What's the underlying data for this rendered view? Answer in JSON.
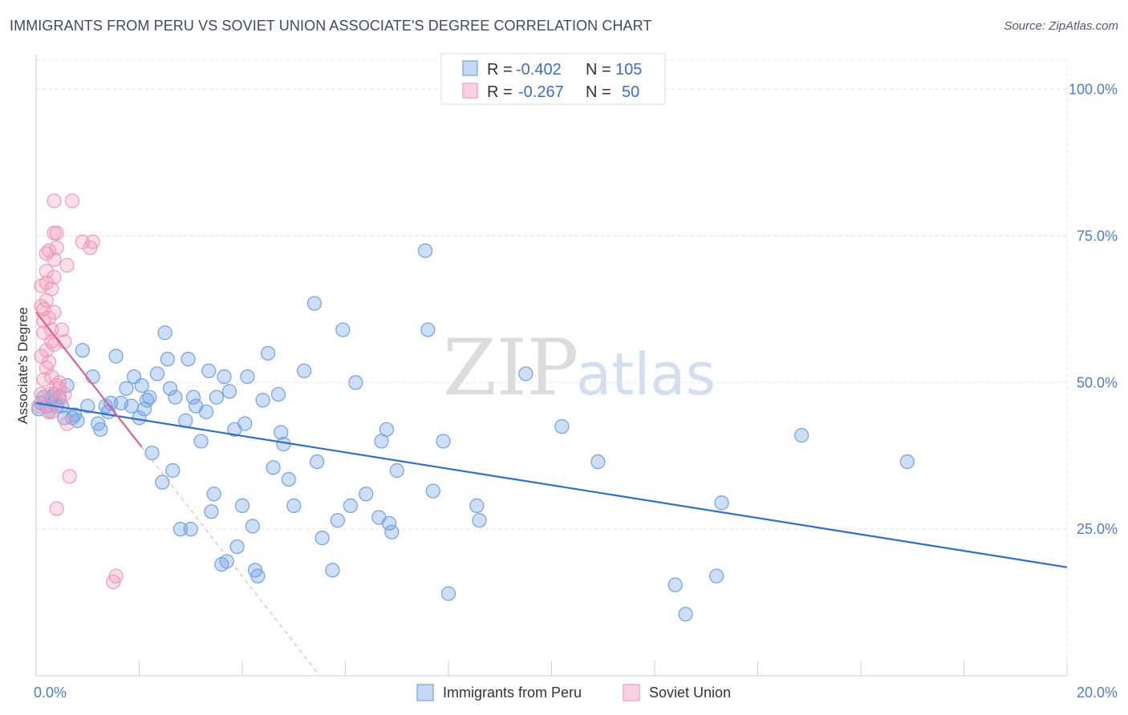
{
  "header": {
    "title": "IMMIGRANTS FROM PERU VS SOVIET UNION ASSOCIATE'S DEGREE CORRELATION CHART",
    "source": "Source: ZipAtlas.com"
  },
  "watermark": {
    "zip": "ZIP",
    "atlas": "atlas"
  },
  "legend": {
    "rows": [
      {
        "r_label": "R =",
        "r_value": "-0.402",
        "n_label": "N =",
        "n_value": "105",
        "color": "#6fa1e8"
      },
      {
        "r_label": "R =",
        "r_value": "-0.267",
        "n_label": "N =",
        "n_value": "50",
        "color": "#f19bb6"
      }
    ]
  },
  "chart_data": {
    "type": "scatter",
    "title": "IMMIGRANTS FROM PERU VS SOVIET UNION ASSOCIATE'S DEGREE CORRELATION CHART",
    "xlabel": "",
    "ylabel": "Associate's Degree",
    "xlim": [
      0,
      20
    ],
    "ylim": [
      0,
      105
    ],
    "x_tick_labels": [
      "0.0%",
      "20.0%"
    ],
    "y_ticks": [
      25,
      50,
      75,
      100
    ],
    "y_tick_labels": [
      "25.0%",
      "50.0%",
      "75.0%",
      "100.0%"
    ],
    "grid": true,
    "legend_position": "top-center",
    "series": [
      {
        "name": "Immigrants from Peru",
        "color": "#6fa1e8",
        "line_color": "#2d6fd0",
        "trend": {
          "x": [
            0.0,
            20.0
          ],
          "y": [
            46.5,
            18.5
          ]
        },
        "points": [
          [
            0.05,
            45.5
          ],
          [
            0.1,
            46.5
          ],
          [
            0.15,
            47.5
          ],
          [
            0.2,
            46
          ],
          [
            0.25,
            45
          ],
          [
            0.3,
            47.5
          ],
          [
            0.35,
            48
          ],
          [
            0.4,
            46
          ],
          [
            0.45,
            47.5
          ],
          [
            0.5,
            46
          ],
          [
            0.55,
            44
          ],
          [
            0.6,
            49.5
          ],
          [
            0.7,
            44
          ],
          [
            0.75,
            44.5
          ],
          [
            0.8,
            43.5
          ],
          [
            0.9,
            55.5
          ],
          [
            1.0,
            46
          ],
          [
            1.1,
            51
          ],
          [
            1.2,
            43
          ],
          [
            1.25,
            42
          ],
          [
            1.35,
            46
          ],
          [
            1.4,
            45
          ],
          [
            1.45,
            46.5
          ],
          [
            1.55,
            54.5
          ],
          [
            1.65,
            46.5
          ],
          [
            1.75,
            49
          ],
          [
            1.85,
            46
          ],
          [
            1.9,
            51
          ],
          [
            2.0,
            44
          ],
          [
            2.05,
            49.5
          ],
          [
            2.1,
            45.5
          ],
          [
            2.15,
            47
          ],
          [
            2.2,
            47.5
          ],
          [
            2.25,
            38
          ],
          [
            2.35,
            51.5
          ],
          [
            2.45,
            33
          ],
          [
            2.5,
            58.5
          ],
          [
            2.55,
            54
          ],
          [
            2.6,
            49
          ],
          [
            2.65,
            35
          ],
          [
            2.7,
            47.5
          ],
          [
            2.8,
            25
          ],
          [
            2.9,
            43.5
          ],
          [
            2.95,
            54
          ],
          [
            3.0,
            25
          ],
          [
            3.05,
            47.5
          ],
          [
            3.1,
            46
          ],
          [
            3.2,
            40
          ],
          [
            3.3,
            45
          ],
          [
            3.35,
            52
          ],
          [
            3.4,
            28
          ],
          [
            3.45,
            31
          ],
          [
            3.5,
            47.5
          ],
          [
            3.6,
            19
          ],
          [
            3.65,
            51
          ],
          [
            3.7,
            19.5
          ],
          [
            3.75,
            48.5
          ],
          [
            3.85,
            42
          ],
          [
            3.9,
            22
          ],
          [
            4.0,
            29
          ],
          [
            4.05,
            43
          ],
          [
            4.1,
            51
          ],
          [
            4.2,
            25.5
          ],
          [
            4.25,
            18
          ],
          [
            4.3,
            17
          ],
          [
            4.4,
            47
          ],
          [
            4.5,
            55
          ],
          [
            4.6,
            35.5
          ],
          [
            4.7,
            48
          ],
          [
            4.75,
            41.5
          ],
          [
            4.8,
            39.5
          ],
          [
            4.9,
            33.5
          ],
          [
            5.0,
            29
          ],
          [
            5.2,
            52
          ],
          [
            5.4,
            63.5
          ],
          [
            5.45,
            36.5
          ],
          [
            5.55,
            23.5
          ],
          [
            5.75,
            18
          ],
          [
            5.85,
            26.5
          ],
          [
            5.95,
            59
          ],
          [
            6.1,
            29
          ],
          [
            6.2,
            50
          ],
          [
            6.4,
            31
          ],
          [
            6.65,
            27
          ],
          [
            6.7,
            40
          ],
          [
            6.8,
            42
          ],
          [
            6.85,
            26
          ],
          [
            6.9,
            24.5
          ],
          [
            7.0,
            35
          ],
          [
            7.55,
            72.5
          ],
          [
            7.6,
            59
          ],
          [
            7.7,
            31.5
          ],
          [
            7.9,
            40
          ],
          [
            8.0,
            14
          ],
          [
            8.55,
            29
          ],
          [
            8.6,
            26.5
          ],
          [
            9.5,
            51.5
          ],
          [
            10.2,
            42.5
          ],
          [
            10.9,
            36.5
          ],
          [
            12.4,
            15.5
          ],
          [
            12.6,
            10.5
          ],
          [
            13.2,
            17
          ],
          [
            13.3,
            29.5
          ],
          [
            14.85,
            41
          ],
          [
            16.9,
            36.5
          ]
        ]
      },
      {
        "name": "Soviet Union",
        "color": "#f19bb6",
        "line_color": "#e0608e",
        "trend": {
          "x": [
            0.0,
            2.05
          ],
          "y": [
            62,
            39
          ],
          "dashed_extension": {
            "x": [
              2.05,
              5.5
            ],
            "y": [
              39,
              0
            ]
          }
        },
        "points": [
          [
            0.05,
            46
          ],
          [
            0.1,
            48
          ],
          [
            0.1,
            63
          ],
          [
            0.1,
            66.5
          ],
          [
            0.1,
            54.5
          ],
          [
            0.15,
            60.5
          ],
          [
            0.15,
            58.5
          ],
          [
            0.15,
            50.5
          ],
          [
            0.2,
            72
          ],
          [
            0.2,
            67
          ],
          [
            0.2,
            64
          ],
          [
            0.2,
            55.5
          ],
          [
            0.2,
            52.5
          ],
          [
            0.25,
            72.5
          ],
          [
            0.25,
            61
          ],
          [
            0.25,
            53.5
          ],
          [
            0.25,
            48
          ],
          [
            0.25,
            45
          ],
          [
            0.3,
            66
          ],
          [
            0.3,
            59
          ],
          [
            0.3,
            57
          ],
          [
            0.35,
            81
          ],
          [
            0.35,
            75.5
          ],
          [
            0.35,
            71
          ],
          [
            0.35,
            68
          ],
          [
            0.35,
            62
          ],
          [
            0.35,
            56.5
          ],
          [
            0.4,
            75.5
          ],
          [
            0.4,
            73
          ],
          [
            0.4,
            49.5
          ],
          [
            0.4,
            28.5
          ],
          [
            0.45,
            49
          ],
          [
            0.45,
            50
          ],
          [
            0.5,
            59
          ],
          [
            0.55,
            57
          ],
          [
            0.55,
            48
          ],
          [
            0.6,
            70
          ],
          [
            0.6,
            43
          ],
          [
            0.65,
            34
          ],
          [
            0.7,
            81
          ],
          [
            0.9,
            74
          ],
          [
            1.05,
            73
          ],
          [
            1.1,
            74
          ],
          [
            1.5,
            16
          ],
          [
            1.55,
            17
          ],
          [
            0.15,
            62.5
          ],
          [
            0.2,
            69
          ],
          [
            0.3,
            51
          ],
          [
            0.45,
            47
          ],
          [
            0.3,
            45
          ]
        ]
      }
    ]
  }
}
